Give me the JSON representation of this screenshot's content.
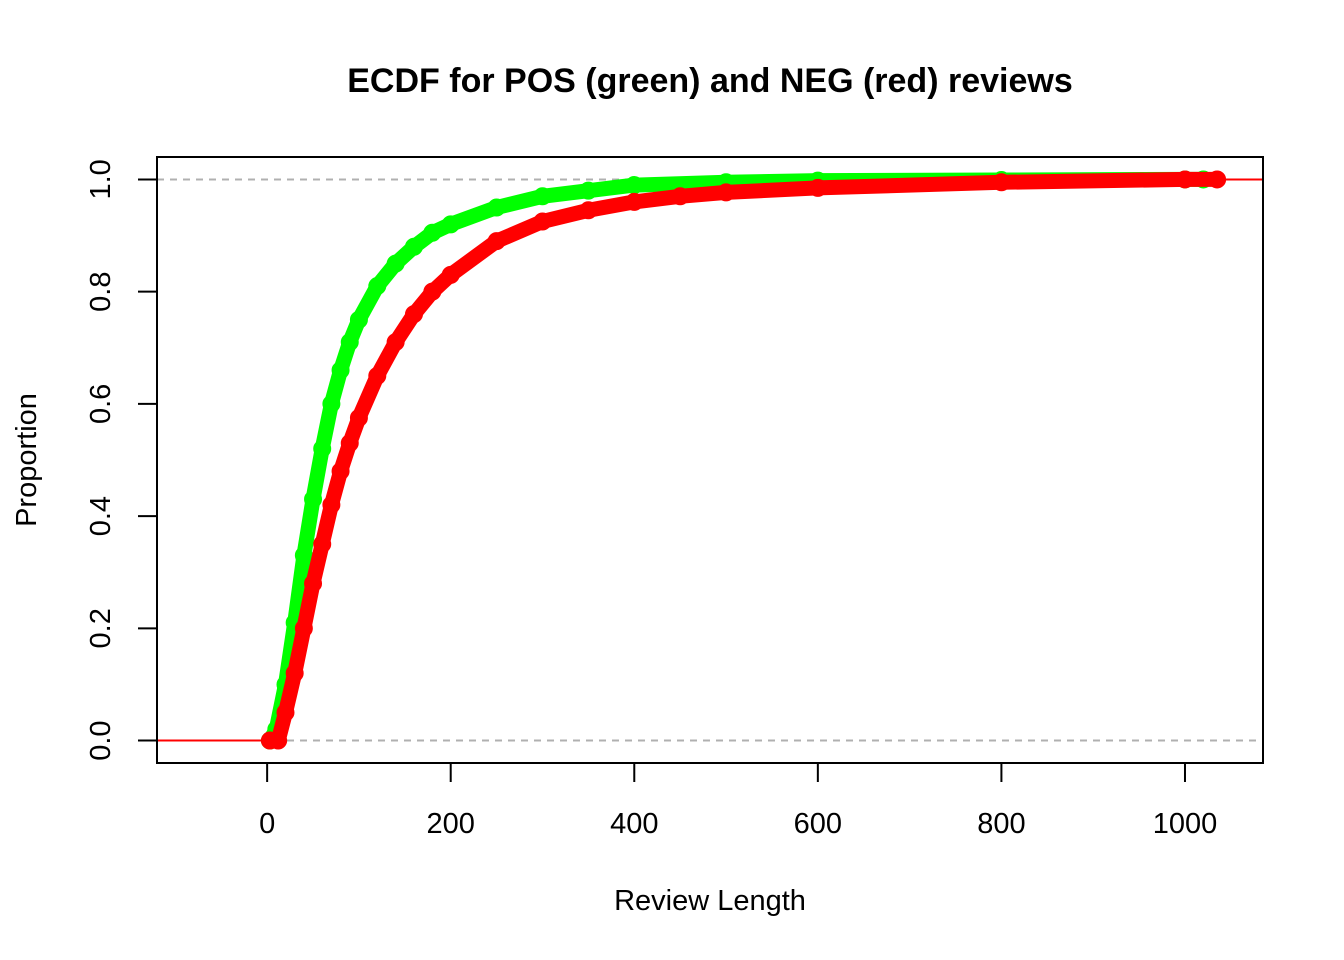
{
  "chart_data": {
    "type": "line",
    "title": "ECDF for POS (green) and NEG (red) reviews",
    "xlabel": "Review Length",
    "ylabel": "Proportion",
    "xlim": [
      -120,
      1085
    ],
    "ylim": [
      -0.04,
      1.04
    ],
    "x_ticks": [
      0,
      200,
      400,
      600,
      800,
      1000
    ],
    "y_ticks": [
      0,
      0.2,
      0.4,
      0.6,
      0.8,
      1
    ],
    "x_tick_labels": [
      "0",
      "200",
      "400",
      "600",
      "800",
      "1000"
    ],
    "y_tick_labels": [
      "0.0",
      "0.2",
      "0.4",
      "0.6",
      "0.8",
      "1.0"
    ],
    "reference_lines": [
      0,
      1
    ],
    "grid": false,
    "series": [
      {
        "color": "#00ff00",
        "x": [
          3,
          10,
          20,
          30,
          40,
          50,
          60,
          70,
          80,
          90,
          100,
          120,
          140,
          160,
          180,
          200,
          250,
          300,
          350,
          400,
          500,
          600,
          800,
          1000,
          1020
        ],
        "y": [
          0,
          0.02,
          0.1,
          0.21,
          0.33,
          0.43,
          0.52,
          0.6,
          0.66,
          0.71,
          0.75,
          0.81,
          0.85,
          0.88,
          0.905,
          0.92,
          0.95,
          0.97,
          0.98,
          0.99,
          0.995,
          0.998,
          0.999,
          1.0,
          1.0
        ]
      },
      {
        "color": "#ff0000",
        "x": [
          3,
          12,
          20,
          30,
          40,
          50,
          60,
          70,
          80,
          90,
          100,
          120,
          140,
          160,
          180,
          200,
          250,
          300,
          350,
          400,
          450,
          500,
          600,
          800,
          1000,
          1035
        ],
        "y": [
          0,
          0,
          0.05,
          0.12,
          0.2,
          0.28,
          0.35,
          0.42,
          0.48,
          0.53,
          0.575,
          0.65,
          0.71,
          0.76,
          0.8,
          0.83,
          0.89,
          0.925,
          0.945,
          0.96,
          0.97,
          0.977,
          0.985,
          0.995,
          1.0,
          1.0
        ]
      }
    ]
  }
}
